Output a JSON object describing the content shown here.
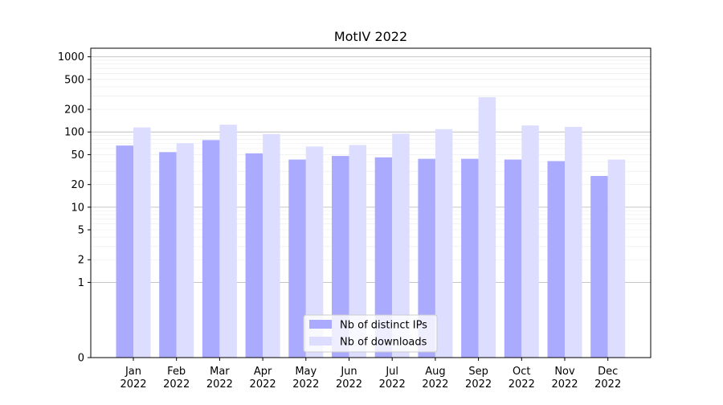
{
  "chart_data": {
    "type": "bar",
    "title": "MotIV 2022",
    "xlabel": "",
    "ylabel": "",
    "y_scale": "symlog",
    "ylim": [
      0,
      1300
    ],
    "y_ticks": [
      0,
      1,
      2,
      5,
      10,
      20,
      50,
      100,
      200,
      500,
      1000
    ],
    "y_tick_labels": [
      "0",
      "1",
      "2",
      "5",
      "10",
      "20",
      "50",
      "100",
      "200",
      "500",
      "1000"
    ],
    "categories": [
      "Jan\n2022",
      "Feb\n2022",
      "Mar\n2022",
      "Apr\n2022",
      "May\n2022",
      "Jun\n2022",
      "Jul\n2022",
      "Aug\n2022",
      "Sep\n2022",
      "Oct\n2022",
      "Nov\n2022",
      "Dec\n2022"
    ],
    "series": [
      {
        "name": "Nb of distinct IPs",
        "color": "#aaaaff",
        "values": [
          66,
          54,
          78,
          52,
          43,
          48,
          46,
          44,
          44,
          43,
          41,
          26
        ]
      },
      {
        "name": "Nb of downloads",
        "color": "#ddddff",
        "values": [
          115,
          71,
          125,
          94,
          64,
          67,
          95,
          109,
          290,
          122,
          117,
          43
        ]
      }
    ],
    "grid": true,
    "legend_position": "bottom-center"
  }
}
